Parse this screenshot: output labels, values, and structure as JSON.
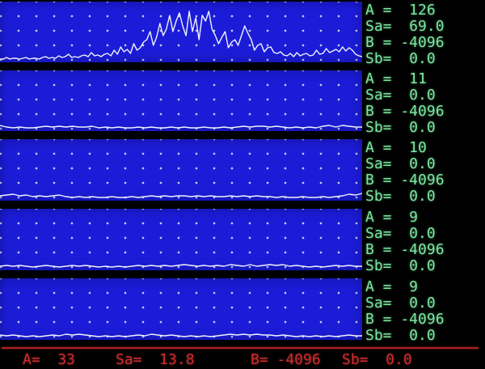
{
  "colors": {
    "background": "#000000",
    "panel_blue": "#1c1cd8",
    "grid_dot": "#cdd2f2",
    "trace_white": "#f0f2ff",
    "readout_green": "#7de6a0",
    "status_red": "#cd2d2d",
    "divider_red": "#c22424"
  },
  "panels": [
    {
      "name": "channel-1",
      "readout": [
        {
          "label": "A =",
          "value": "126"
        },
        {
          "label": "Sa=",
          "value": "69.0"
        },
        {
          "label": "B =",
          "value": "-4096"
        },
        {
          "label": "Sb=",
          "value": "0.0"
        }
      ],
      "waveform": [
        1,
        1,
        3,
        1,
        2,
        2,
        1,
        2,
        3,
        1,
        2,
        2,
        1,
        3,
        4,
        2,
        3,
        2,
        5,
        3,
        4,
        7,
        3,
        4,
        3,
        5,
        6,
        4,
        9,
        5,
        6,
        4,
        7,
        8,
        5,
        12,
        7,
        16,
        10,
        13,
        8,
        20,
        12,
        15,
        22,
        25,
        35,
        18,
        28,
        45,
        30,
        38,
        55,
        35,
        48,
        58,
        42,
        30,
        60,
        35,
        52,
        25,
        55,
        48,
        60,
        38,
        30,
        20,
        28,
        35,
        15,
        22,
        25,
        18,
        30,
        42,
        33,
        25,
        12,
        18,
        20,
        10,
        15,
        16,
        9,
        8,
        10,
        6,
        5,
        8,
        4,
        9,
        5,
        7,
        8,
        5,
        6,
        12,
        7,
        8,
        14,
        9,
        11,
        13,
        10,
        16,
        11,
        15,
        12,
        7,
        5,
        4
      ]
    },
    {
      "name": "channel-2",
      "readout": [
        {
          "label": "A =",
          "value": "11"
        },
        {
          "label": "Sa=",
          "value": "0.0"
        },
        {
          "label": "B =",
          "value": "-4096"
        },
        {
          "label": "Sb=",
          "value": "0.0"
        }
      ],
      "waveform": [
        4,
        2,
        1,
        2,
        1,
        1,
        2,
        3,
        2,
        3,
        2,
        3,
        2,
        2,
        3,
        1,
        2,
        1,
        2,
        1,
        1,
        2,
        1,
        2,
        1,
        1,
        2,
        1,
        2,
        1,
        1,
        2,
        1,
        1,
        2,
        1,
        2,
        3,
        2,
        3,
        3,
        2,
        3,
        2,
        1,
        2,
        1,
        2,
        1,
        3,
        4,
        2,
        4,
        3,
        2,
        2
      ]
    },
    {
      "name": "channel-3",
      "readout": [
        {
          "label": "A =",
          "value": "10"
        },
        {
          "label": "Sa=",
          "value": "0.0"
        },
        {
          "label": "B =",
          "value": "-4096"
        },
        {
          "label": "Sb=",
          "value": "0.0"
        }
      ],
      "waveform": [
        3,
        4,
        5,
        3,
        4,
        2,
        3,
        2,
        3,
        4,
        2,
        1,
        2,
        1,
        2,
        1,
        1,
        2,
        1,
        1,
        2,
        1,
        2,
        3,
        2,
        3,
        2,
        3,
        3,
        2,
        3,
        2,
        3,
        2,
        2,
        3,
        2,
        3,
        2,
        3,
        2,
        2,
        1,
        2,
        1,
        1,
        2,
        1,
        1,
        2,
        1,
        2,
        3,
        5,
        4,
        6
      ]
    },
    {
      "name": "channel-4",
      "readout": [
        {
          "label": "A =",
          "value": "9"
        },
        {
          "label": "Sa=",
          "value": "0.0"
        },
        {
          "label": "B =",
          "value": "-4096"
        },
        {
          "label": "Sb=",
          "value": "0.0"
        }
      ],
      "waveform": [
        2,
        3,
        2,
        3,
        2,
        1,
        2,
        3,
        2,
        1,
        2,
        3,
        2,
        3,
        2,
        1,
        2,
        1,
        2,
        1,
        2,
        3,
        2,
        3,
        2,
        3,
        2,
        3,
        4,
        3,
        2,
        3,
        2,
        3,
        2,
        4,
        3,
        2,
        4,
        2,
        3,
        4,
        3,
        4,
        2,
        3,
        2,
        1,
        2,
        1,
        2,
        3,
        2,
        3,
        2,
        2
      ]
    },
    {
      "name": "channel-5",
      "readout": [
        {
          "label": "A =",
          "value": "9"
        },
        {
          "label": "Sa=",
          "value": "0.0"
        },
        {
          "label": "B =",
          "value": "-4096"
        },
        {
          "label": "Sb=",
          "value": "0.0"
        }
      ],
      "waveform": [
        3,
        2,
        3,
        2,
        1,
        2,
        1,
        2,
        3,
        2,
        4,
        3,
        4,
        3,
        2,
        1,
        2,
        1,
        2,
        1,
        2,
        3,
        2,
        4,
        3,
        2,
        3,
        2,
        1,
        2,
        1,
        2,
        1,
        2,
        3,
        4,
        3,
        4,
        3,
        4,
        3,
        3,
        2,
        3,
        2,
        1,
        2,
        1,
        2,
        1,
        2,
        1,
        2,
        3,
        2,
        2
      ]
    }
  ],
  "status_bar": {
    "items": [
      {
        "name": "a",
        "label": "A=",
        "value": "33"
      },
      {
        "name": "sa",
        "label": "Sa=",
        "value": "13.8"
      },
      {
        "name": "b",
        "label": "B=",
        "value": "-4096"
      },
      {
        "name": "sb",
        "label": "Sb=",
        "value": "0.0"
      }
    ]
  }
}
